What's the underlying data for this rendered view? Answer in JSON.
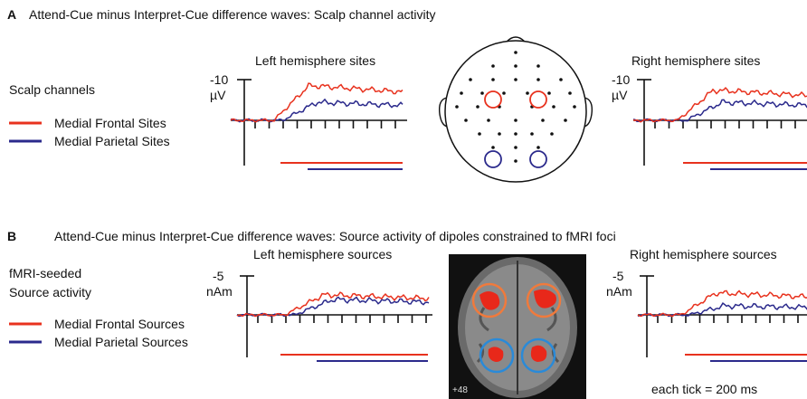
{
  "panel_a": {
    "letter": "A",
    "title": "Attend-Cue minus Interpret-Cue difference waves: Scalp channel activity",
    "legend": {
      "heading": "Scalp channels",
      "items": [
        "Medial Frontal Sites",
        "Medial Parietal Sites"
      ]
    },
    "left": {
      "title": "Left hemisphere sites",
      "scale": "-10",
      "unit": "µV"
    },
    "right": {
      "title": "Right hemisphere sites",
      "scale": "-10",
      "unit": "µV"
    }
  },
  "panel_b": {
    "letter": "B",
    "title": "Attend-Cue minus Interpret-Cue difference waves: Source activity of dipoles constrained to fMRI foci",
    "legend": {
      "heading": [
        "fMRI-seeded",
        "Source activity"
      ],
      "items": [
        "Medial Frontal Sources",
        "Medial Parietal Sources"
      ]
    },
    "left": {
      "title": "Left hemisphere sources",
      "scale": "-5",
      "unit": "nAm"
    },
    "right": {
      "title": "Right hemisphere sources",
      "scale": "-5",
      "unit": "nAm"
    },
    "slice_label": "+48",
    "tick_note": "each tick = 200 ms"
  }
}
